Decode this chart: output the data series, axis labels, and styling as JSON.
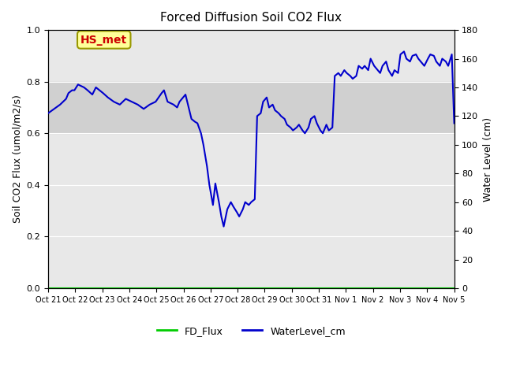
{
  "title": "Forced Diffusion Soil CO2 Flux",
  "ylabel_left": "Soil CO2 Flux (umol/m2/s)",
  "ylabel_right": "Water Level (cm)",
  "xlim_start": 0,
  "xlim_end": 340,
  "ylim_left": [
    0,
    1.0
  ],
  "ylim_right": [
    0,
    180
  ],
  "background_color": "#ffffff",
  "plot_bg_color": "#e8e8e8",
  "band_y_low": 0.6,
  "band_y_high": 0.8,
  "band_color": "#d0d0d0",
  "xtick_labels": [
    "Oct 21",
    "Oct 22",
    "Oct 23",
    "Oct 24",
    "Oct 25",
    "Oct 26",
    "Oct 27",
    "Oct 28",
    "Oct 29",
    "Oct 30",
    "Oct 31",
    "Nov 1",
    "Nov 2",
    "Nov 3",
    "Nov 4",
    "Nov 5"
  ],
  "fd_flux_color": "#00cc00",
  "water_color": "#0000cc",
  "legend_fd": "FD_Flux",
  "legend_water": "WaterLevel_cm",
  "annotation_text": "HS_met",
  "annotation_color": "#cc0000",
  "annotation_bg": "#ffff99",
  "annotation_border": "#999900",
  "water_data_x": [
    0,
    5,
    10,
    15,
    17,
    20,
    22,
    25,
    30,
    33,
    37,
    40,
    43,
    46,
    50,
    55,
    60,
    65,
    70,
    75,
    80,
    85,
    90,
    95,
    97,
    100,
    105,
    108,
    110,
    115,
    120,
    123,
    125,
    128,
    130,
    133,
    135,
    138,
    140,
    143,
    145,
    147,
    150,
    153,
    155,
    158,
    160,
    163,
    165,
    168,
    170,
    173,
    175,
    178,
    180,
    183,
    185,
    188,
    190,
    193,
    195,
    198,
    200,
    203,
    205,
    208,
    210,
    213,
    215,
    218,
    220,
    223,
    225,
    228,
    230,
    233,
    235,
    238,
    240,
    243,
    245,
    248,
    250,
    253,
    255,
    258,
    260,
    263,
    265,
    268,
    270,
    273,
    275,
    278,
    280,
    283,
    285,
    288,
    290,
    293,
    295,
    298,
    300,
    303,
    305,
    308,
    310,
    313,
    315,
    318,
    320,
    323,
    325,
    328,
    330,
    333,
    335,
    338,
    340
  ],
  "water_data_y": [
    122,
    125,
    128,
    132,
    136,
    138,
    138,
    142,
    140,
    138,
    135,
    140,
    138,
    136,
    133,
    130,
    128,
    132,
    130,
    128,
    125,
    128,
    130,
    136,
    138,
    130,
    128,
    126,
    130,
    135,
    118,
    116,
    115,
    108,
    100,
    85,
    72,
    58,
    73,
    60,
    50,
    43,
    55,
    60,
    57,
    53,
    50,
    55,
    60,
    58,
    60,
    62,
    120,
    122,
    130,
    133,
    126,
    128,
    124,
    122,
    120,
    118,
    114,
    112,
    110,
    112,
    114,
    110,
    108,
    112,
    118,
    120,
    115,
    110,
    108,
    114,
    110,
    112,
    148,
    150,
    148,
    152,
    150,
    148,
    146,
    148,
    155,
    153,
    155,
    152,
    160,
    155,
    153,
    150,
    155,
    158,
    152,
    148,
    152,
    150,
    163,
    165,
    160,
    158,
    162,
    163,
    160,
    157,
    155,
    160,
    163,
    162,
    158,
    155,
    160,
    158,
    155,
    163,
    115
  ],
  "fd_flux_x": [
    0,
    5,
    10,
    15,
    20,
    25,
    30,
    35,
    40,
    45,
    50,
    55,
    60,
    65,
    70,
    75,
    80,
    85,
    90,
    95,
    100,
    105,
    110,
    115,
    120,
    125,
    130,
    135,
    140,
    145,
    150,
    155,
    160,
    165,
    170,
    175,
    180,
    185,
    190,
    195,
    200,
    205,
    210,
    215,
    220,
    225,
    230,
    235,
    240,
    245,
    250,
    255,
    260,
    265,
    270,
    275,
    280,
    285,
    290,
    295,
    300,
    305,
    310,
    315,
    320,
    325,
    330,
    335,
    340
  ],
  "fd_flux_y": [
    0,
    0,
    0,
    0,
    0,
    0,
    0,
    0,
    0,
    0,
    0,
    0,
    0,
    0,
    0,
    0,
    0,
    0,
    0,
    0,
    0,
    0,
    0,
    0,
    0,
    0,
    0,
    0,
    0,
    0,
    0,
    0,
    0,
    0,
    0,
    0,
    0,
    0,
    0,
    0,
    0,
    0,
    0,
    0,
    0,
    0,
    0,
    0,
    0,
    0,
    0,
    0,
    0,
    0,
    0,
    0,
    0,
    0,
    0,
    0,
    0,
    0,
    0,
    0,
    0,
    0,
    0,
    0,
    0
  ]
}
